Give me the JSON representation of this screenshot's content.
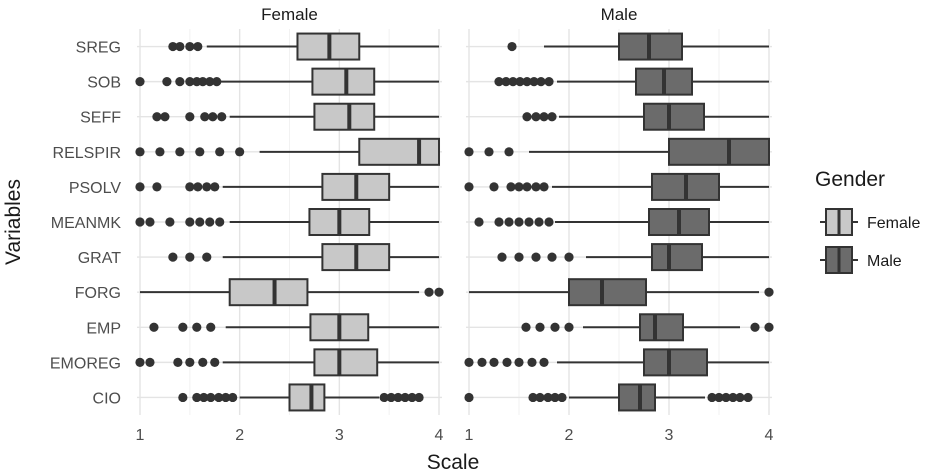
{
  "chart_data": {
    "type": "boxplot",
    "title": "",
    "xlabel": "Scale",
    "ylabel": "Variables",
    "xlim": [
      0.97,
      4.03
    ],
    "x_ticks": [
      1,
      2,
      3,
      4
    ],
    "grid": true,
    "legend": {
      "title": "Gender",
      "placement": "right",
      "entries": [
        {
          "name": "Female",
          "color": "#c8c8c8"
        },
        {
          "name": "Male",
          "color": "#6b6b6b"
        }
      ]
    },
    "categories": [
      "SREG",
      "SOB",
      "SEFF",
      "RELSPIR",
      "PSOLV",
      "MEANMK",
      "GRAT",
      "FORG",
      "EMP",
      "EMOREG",
      "CIO"
    ],
    "panels": [
      {
        "name": "Female",
        "color": "#c8c8c8",
        "boxes": [
          {
            "category": "SREG",
            "whisker_low": 1.67,
            "q1": 2.58,
            "median": 2.9,
            "q3": 3.2,
            "whisker_high": 4.0,
            "outliers": [
              1.33,
              1.4,
              1.5,
              1.58
            ]
          },
          {
            "category": "SOB",
            "whisker_low": 1.8,
            "q1": 2.73,
            "median": 3.07,
            "q3": 3.35,
            "whisker_high": 4.0,
            "outliers": [
              1.0,
              1.27,
              1.4,
              1.5,
              1.57,
              1.63,
              1.7,
              1.77
            ]
          },
          {
            "category": "SEFF",
            "whisker_low": 1.9,
            "q1": 2.75,
            "median": 3.1,
            "q3": 3.35,
            "whisker_high": 4.0,
            "outliers": [
              1.17,
              1.25,
              1.5,
              1.65,
              1.73,
              1.82
            ]
          },
          {
            "category": "RELSPIR",
            "whisker_low": 2.2,
            "q1": 3.2,
            "median": 3.8,
            "q3": 4.0,
            "whisker_high": 4.0,
            "outliers": [
              1.0,
              1.2,
              1.4,
              1.6,
              1.8,
              2.0
            ]
          },
          {
            "category": "PSOLV",
            "whisker_low": 1.83,
            "q1": 2.83,
            "median": 3.17,
            "q3": 3.5,
            "whisker_high": 4.0,
            "outliers": [
              1.0,
              1.17,
              1.5,
              1.58,
              1.67,
              1.75
            ]
          },
          {
            "category": "MEANMK",
            "whisker_low": 1.9,
            "q1": 2.7,
            "median": 3.0,
            "q3": 3.3,
            "whisker_high": 4.0,
            "outliers": [
              1.0,
              1.1,
              1.3,
              1.5,
              1.6,
              1.7,
              1.8
            ]
          },
          {
            "category": "GRAT",
            "whisker_low": 1.83,
            "q1": 2.83,
            "median": 3.17,
            "q3": 3.5,
            "whisker_high": 4.0,
            "outliers": [
              1.33,
              1.5,
              1.67
            ]
          },
          {
            "category": "FORG",
            "whisker_low": 1.0,
            "q1": 1.9,
            "median": 2.35,
            "q3": 2.68,
            "whisker_high": 3.8,
            "outliers": [
              3.9,
              4.0
            ]
          },
          {
            "category": "EMP",
            "whisker_low": 1.86,
            "q1": 2.71,
            "median": 3.0,
            "q3": 3.29,
            "whisker_high": 4.0,
            "outliers": [
              1.14,
              1.43,
              1.57,
              1.71
            ]
          },
          {
            "category": "EMOREG",
            "whisker_low": 1.83,
            "q1": 2.75,
            "median": 3.0,
            "q3": 3.38,
            "whisker_high": 4.0,
            "outliers": [
              1.0,
              1.1,
              1.38,
              1.5,
              1.63,
              1.75
            ]
          },
          {
            "category": "CIO",
            "whisker_low": 2.0,
            "q1": 2.5,
            "median": 2.72,
            "q3": 2.85,
            "whisker_high": 3.4,
            "outliers": [
              1.43,
              1.57,
              1.64,
              1.71,
              1.79,
              1.86,
              1.93,
              3.45,
              3.52,
              3.59,
              3.66,
              3.73,
              3.8
            ]
          }
        ]
      },
      {
        "name": "Male",
        "color": "#6b6b6b",
        "boxes": [
          {
            "category": "SREG",
            "whisker_low": 1.75,
            "q1": 2.5,
            "median": 2.8,
            "q3": 3.13,
            "whisker_high": 4.0,
            "outliers": [
              1.43
            ]
          },
          {
            "category": "SOB",
            "whisker_low": 1.88,
            "q1": 2.67,
            "median": 2.95,
            "q3": 3.23,
            "whisker_high": 4.0,
            "outliers": [
              1.3,
              1.37,
              1.44,
              1.51,
              1.58,
              1.65,
              1.72,
              1.8
            ]
          },
          {
            "category": "SEFF",
            "whisker_low": 1.9,
            "q1": 2.75,
            "median": 3.0,
            "q3": 3.35,
            "whisker_high": 4.0,
            "outliers": [
              1.58,
              1.67,
              1.75,
              1.83
            ]
          },
          {
            "category": "RELSPIR",
            "whisker_low": 1.6,
            "q1": 3.0,
            "median": 3.6,
            "q3": 4.0,
            "whisker_high": 4.0,
            "outliers": [
              1.0,
              1.2,
              1.4
            ]
          },
          {
            "category": "PSOLV",
            "whisker_low": 1.83,
            "q1": 2.83,
            "median": 3.17,
            "q3": 3.5,
            "whisker_high": 4.0,
            "outliers": [
              1.0,
              1.25,
              1.42,
              1.5,
              1.58,
              1.67,
              1.75
            ]
          },
          {
            "category": "MEANMK",
            "whisker_low": 1.86,
            "q1": 2.8,
            "median": 3.1,
            "q3": 3.4,
            "whisker_high": 4.0,
            "outliers": [
              1.1,
              1.3,
              1.4,
              1.5,
              1.6,
              1.7,
              1.8
            ]
          },
          {
            "category": "GRAT",
            "whisker_low": 2.17,
            "q1": 2.83,
            "median": 3.0,
            "q3": 3.33,
            "whisker_high": 4.0,
            "outliers": [
              1.33,
              1.5,
              1.67,
              1.83,
              2.0
            ]
          },
          {
            "category": "FORG",
            "whisker_low": 1.0,
            "q1": 2.0,
            "median": 2.33,
            "q3": 2.77,
            "whisker_high": 3.9,
            "outliers": [
              4.0
            ]
          },
          {
            "category": "EMP",
            "whisker_low": 2.14,
            "q1": 2.71,
            "median": 2.86,
            "q3": 3.14,
            "whisker_high": 3.71,
            "outliers": [
              1.57,
              1.71,
              1.86,
              2.0,
              3.86,
              4.0
            ]
          },
          {
            "category": "EMOREG",
            "whisker_low": 1.88,
            "q1": 2.75,
            "median": 3.0,
            "q3": 3.38,
            "whisker_high": 4.0,
            "outliers": [
              1.0,
              1.13,
              1.25,
              1.38,
              1.5,
              1.63,
              1.75
            ]
          },
          {
            "category": "CIO",
            "whisker_low": 2.0,
            "q1": 2.5,
            "median": 2.71,
            "q3": 2.86,
            "whisker_high": 3.36,
            "outliers": [
              1.0,
              1.64,
              1.71,
              1.79,
              1.86,
              1.93,
              3.43,
              3.5,
              3.57,
              3.64,
              3.71,
              3.79
            ]
          }
        ]
      }
    ]
  }
}
